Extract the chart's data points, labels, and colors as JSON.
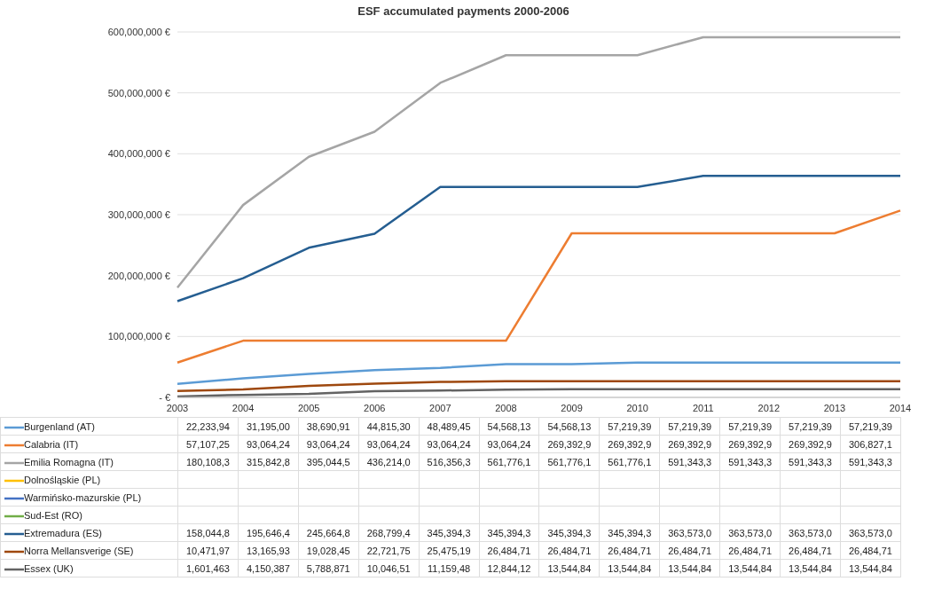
{
  "chart_data": {
    "type": "line",
    "title": "ESF accumulated payments 2000-2006",
    "categories": [
      "2003",
      "2004",
      "2005",
      "2006",
      "2007",
      "2008",
      "2009",
      "2010",
      "2011",
      "2012",
      "2013",
      "2014"
    ],
    "ylim": [
      0,
      600000000
    ],
    "yticks": [
      {
        "value": 0,
        "label": "- €"
      },
      {
        "value": 100000000,
        "label": "100,000,000 €"
      },
      {
        "value": 200000000,
        "label": "200,000,000 €"
      },
      {
        "value": 300000000,
        "label": "300,000,000 €"
      },
      {
        "value": 400000000,
        "label": "400,000,000 €"
      },
      {
        "value": 500000000,
        "label": "500,000,000 €"
      },
      {
        "value": 600000000,
        "label": "600,000,000 €"
      }
    ],
    "grid": "y",
    "legend": "bottom",
    "marker": "none",
    "line_style": "solid",
    "series": [
      {
        "name": "Burgenland (AT)",
        "color": "#5b9bd5",
        "values": [
          22233940,
          31195000,
          38690910,
          44815300,
          48489450,
          54568130,
          54568130,
          57219390,
          57219390,
          57219390,
          57219390,
          57219390
        ],
        "value_labels": [
          "22,233,94",
          "31,195,00",
          "38,690,91",
          "44,815,30",
          "48,489,45",
          "54,568,13",
          "54,568,13",
          "57,219,39",
          "57,219,39",
          "57,219,39",
          "57,219,39",
          "57,219,39"
        ]
      },
      {
        "name": "Calabria (IT)",
        "color": "#ed7d31",
        "values": [
          57107250,
          93064240,
          93064240,
          93064240,
          93064240,
          93064240,
          269392900,
          269392900,
          269392900,
          269392900,
          269392900,
          306827100
        ],
        "value_labels": [
          "57,107,25",
          "93,064,24",
          "93,064,24",
          "93,064,24",
          "93,064,24",
          "93,064,24",
          "269,392,9",
          "269,392,9",
          "269,392,9",
          "269,392,9",
          "269,392,9",
          "306,827,1"
        ]
      },
      {
        "name": "Emilia Romagna (IT)",
        "color": "#a5a5a5",
        "values": [
          180108300,
          315842800,
          395044500,
          436214000,
          516356300,
          561776100,
          561776100,
          561776100,
          591343300,
          591343300,
          591343300,
          591343300
        ],
        "value_labels": [
          "180,108,3",
          "315,842,8",
          "395,044,5",
          "436,214,0",
          "516,356,3",
          "561,776,1",
          "561,776,1",
          "561,776,1",
          "591,343,3",
          "591,343,3",
          "591,343,3",
          "591,343,3"
        ]
      },
      {
        "name": "Dolnośląskie (PL)",
        "color": "#ffc000",
        "values": [
          null,
          null,
          null,
          null,
          null,
          null,
          null,
          null,
          null,
          null,
          null,
          null
        ]
      },
      {
        "name": "Warmińsko-mazurskie (PL)",
        "color": "#4472c4",
        "values": [
          null,
          null,
          null,
          null,
          null,
          null,
          null,
          null,
          null,
          null,
          null,
          null
        ]
      },
      {
        "name": "Sud-Est (RO)",
        "color": "#70ad47",
        "values": [
          null,
          null,
          null,
          null,
          null,
          null,
          null,
          null,
          null,
          null,
          null,
          null
        ]
      },
      {
        "name": "Extremadura (ES)",
        "color": "#255e91",
        "values": [
          158044800,
          195646400,
          245664800,
          268799400,
          345394300,
          345394300,
          345394300,
          345394300,
          363573000,
          363573000,
          363573000,
          363573000
        ],
        "value_labels": [
          "158,044,8",
          "195,646,4",
          "245,664,8",
          "268,799,4",
          "345,394,3",
          "345,394,3",
          "345,394,3",
          "345,394,3",
          "363,573,0",
          "363,573,0",
          "363,573,0",
          "363,573,0"
        ]
      },
      {
        "name": "Norra Mellansverige (SE)",
        "color": "#9e480e",
        "values": [
          10471970,
          13165930,
          19028450,
          22721750,
          25475190,
          26484710,
          26484710,
          26484710,
          26484710,
          26484710,
          26484710,
          26484710
        ],
        "value_labels": [
          "10,471,97",
          "13,165,93",
          "19,028,45",
          "22,721,75",
          "25,475,19",
          "26,484,71",
          "26,484,71",
          "26,484,71",
          "26,484,71",
          "26,484,71",
          "26,484,71",
          "26,484,71"
        ]
      },
      {
        "name": "Essex (UK)",
        "color": "#636363",
        "values": [
          1601463,
          4150387,
          5788871,
          10046510,
          11159480,
          12844120,
          13544840,
          13544840,
          13544840,
          13544840,
          13544840,
          13544840
        ],
        "value_labels": [
          "1,601,463",
          "4,150,387",
          "5,788,871",
          "10,046,51",
          "11,159,48",
          "12,844,12",
          "13,544,84",
          "13,544,84",
          "13,544,84",
          "13,544,84",
          "13,544,84",
          "13,544,84"
        ]
      }
    ]
  }
}
